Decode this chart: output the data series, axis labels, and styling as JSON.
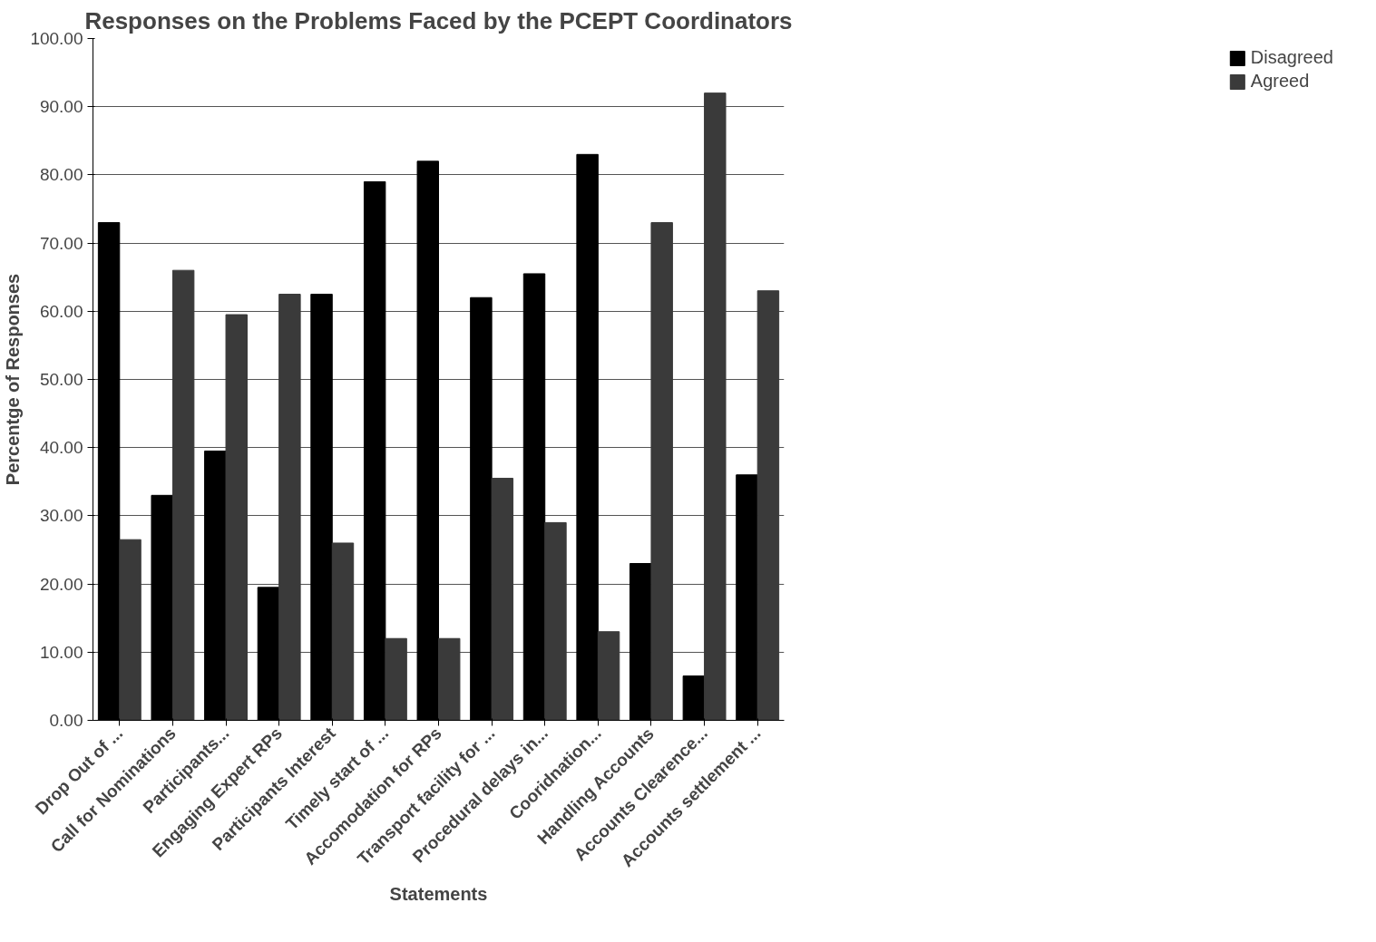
{
  "chart_data": {
    "type": "bar",
    "title": "Responses on the Problems Faced by the PCEPT Coordinators",
    "xlabel": "Statements",
    "ylabel": "Percentge of Responses",
    "categories": [
      "Drop Out of ...",
      "Call for Nominations",
      "Participants...",
      "Engaging Expert RPs",
      "Participants Interest",
      "Timely start of ...",
      "Accomodation for RPs",
      "Transport facility for ...",
      "Procedural delays in...",
      "Cooridnation...",
      "Handling Accounts",
      "Accounts Clearence...",
      "Accounts settlement ..."
    ],
    "series": [
      {
        "name": "Disagreed",
        "color": "#000000",
        "values": [
          73,
          33,
          39.5,
          19.5,
          62.5,
          79,
          82,
          62,
          65.5,
          83,
          23,
          6.5,
          36
        ]
      },
      {
        "name": "Agreed",
        "color": "#3a3a3a",
        "values": [
          26.5,
          66,
          59.5,
          62.5,
          26,
          12,
          12,
          35.5,
          29,
          13,
          73,
          92,
          63
        ]
      }
    ],
    "ylim": [
      0,
      100
    ],
    "yticks": [
      {
        "value": 0,
        "label": "0.00"
      },
      {
        "value": 10,
        "label": "10.00"
      },
      {
        "value": 20,
        "label": "20.00"
      },
      {
        "value": 30,
        "label": "30.00"
      },
      {
        "value": 40,
        "label": "40.00"
      },
      {
        "value": 50,
        "label": "50.00"
      },
      {
        "value": 60,
        "label": "60.00"
      },
      {
        "value": 70,
        "label": "70.00"
      },
      {
        "value": 80,
        "label": "80.00"
      },
      {
        "value": 90,
        "label": "90.00"
      },
      {
        "value": 100,
        "label": "100.00"
      }
    ],
    "grid": "y",
    "legend": "top right"
  }
}
